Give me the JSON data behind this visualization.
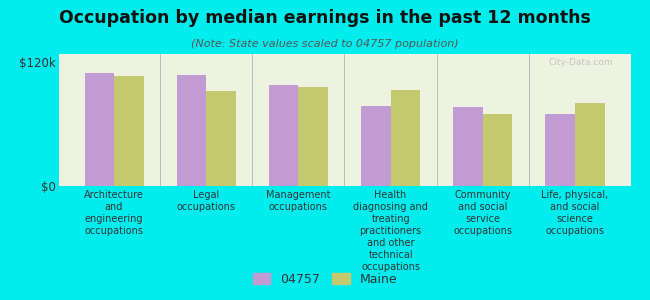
{
  "title": "Occupation by median earnings in the past 12 months",
  "subtitle": "(Note: State values scaled to 04757 population)",
  "background_color": "#00eded",
  "plot_bg_color": "#eef2e0",
  "categories": [
    "Architecture\nand\nengineering\noccupations",
    "Legal\noccupations",
    "Management\noccupations",
    "Health\ndiagnosing and\ntreating\npractitioners\nand other\ntechnical\noccupations",
    "Community\nand social\nservice\noccupations",
    "Life, physical,\nand social\nscience\noccupations"
  ],
  "values_04757": [
    110000,
    108000,
    98000,
    78000,
    77000,
    70000
  ],
  "values_maine": [
    107000,
    92000,
    96000,
    93000,
    70000,
    80000
  ],
  "color_04757": "#c39bd3",
  "color_maine": "#c5c96e",
  "ylim": [
    0,
    128000
  ],
  "yticks": [
    0,
    120000
  ],
  "ytick_labels": [
    "$0",
    "$120k"
  ],
  "legend_04757": "04757",
  "legend_maine": "Maine",
  "watermark": "City-Data.com"
}
